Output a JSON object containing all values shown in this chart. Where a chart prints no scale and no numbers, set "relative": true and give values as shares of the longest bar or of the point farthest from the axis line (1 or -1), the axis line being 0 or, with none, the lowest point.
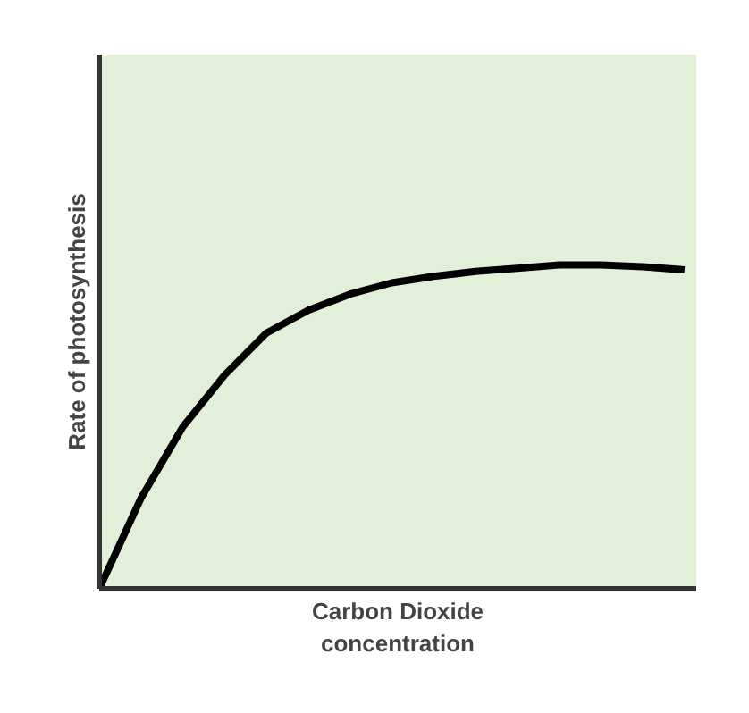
{
  "chart_data": {
    "type": "line",
    "relative": true,
    "xlabel": "Carbon Dioxide\nconcentration",
    "ylabel": "Rate of photosynthesis",
    "categories": [
      null,
      null,
      null,
      null,
      null,
      null,
      null,
      null,
      null,
      null,
      null,
      null,
      null,
      null,
      null
    ],
    "series": [
      {
        "color": "#000000",
        "values": [
          0,
          0.28,
          0.5,
          0.66,
          0.79,
          0.86,
          0.91,
          0.945,
          0.965,
          0.98,
          0.99,
          1.0,
          1.0,
          0.995,
          0.985
        ]
      }
    ],
    "marker": "none",
    "line_style": "solid"
  }
}
